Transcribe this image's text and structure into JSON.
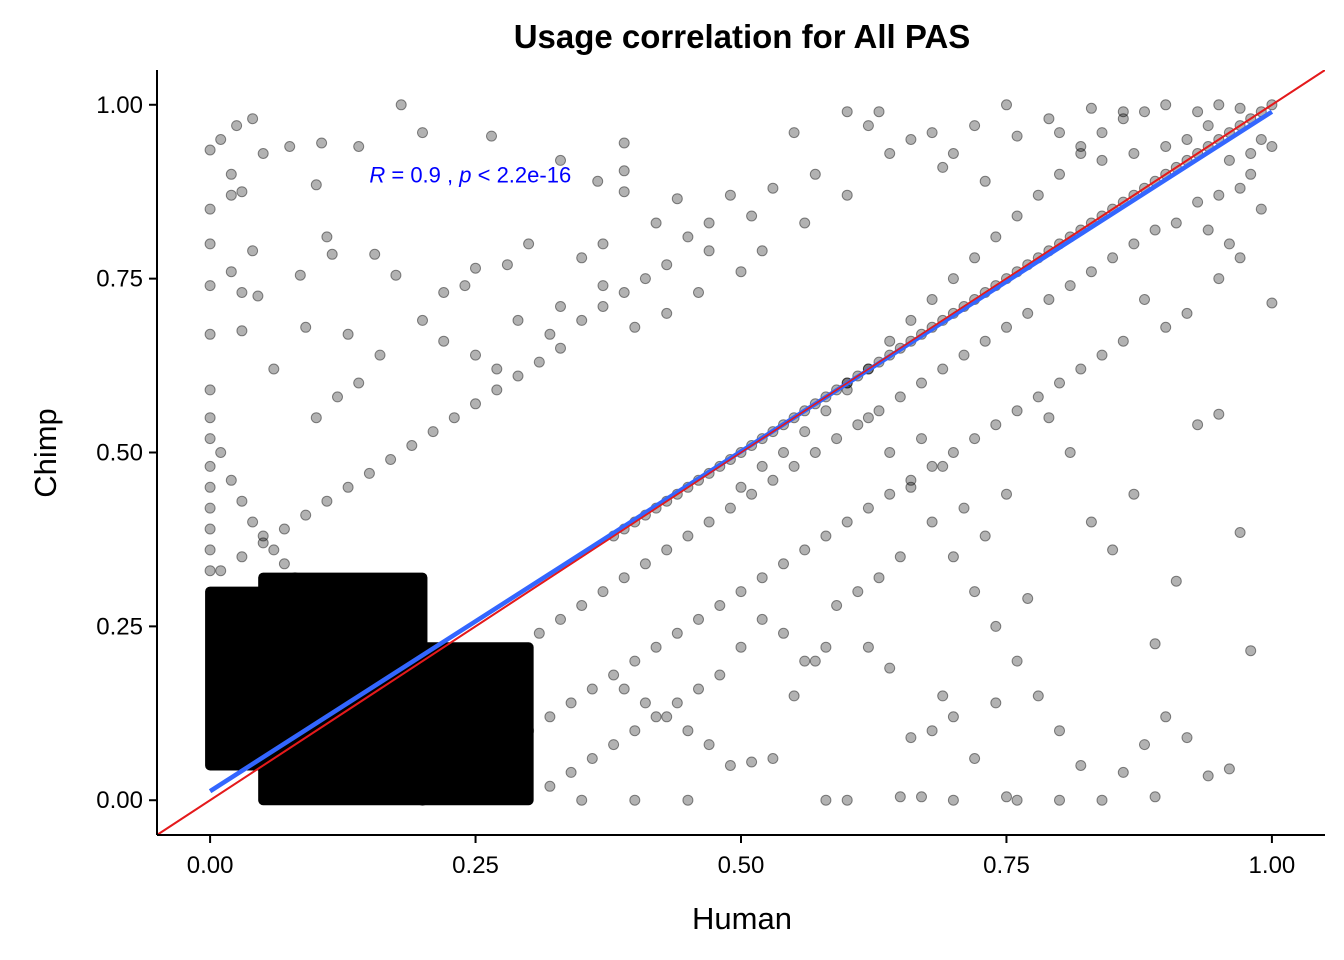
{
  "chart_data": {
    "type": "scatter",
    "title": "Usage correlation for All PAS",
    "xlabel": "Human",
    "ylabel": "Chimp",
    "xlim": [
      -0.05,
      1.05
    ],
    "ylim": [
      -0.05,
      1.05
    ],
    "x_ticks": [
      "0.00",
      "0.25",
      "0.50",
      "0.75",
      "1.00"
    ],
    "y_ticks": [
      "0.00",
      "0.25",
      "0.50",
      "0.75",
      "1.00"
    ],
    "x_tick_values": [
      0,
      0.25,
      0.5,
      0.75,
      1
    ],
    "y_tick_values": [
      0,
      0.25,
      0.5,
      0.75,
      1
    ],
    "grid": false,
    "annotation": {
      "r_symbol": "R",
      "r_text": " = 0.9 , ",
      "p_symbol": "p",
      "p_text": " < 2.2e-16",
      "x": 0.15,
      "y": 0.9,
      "color": "#0000ff"
    },
    "regression_line": {
      "name": "",
      "x": [
        0,
        1
      ],
      "y": [
        0.013,
        0.99
      ],
      "color": "#3366ff"
    },
    "identity_line": {
      "slope": 1,
      "intercept": 0,
      "color": "#e41a1c"
    },
    "point_color": "#000000",
    "point_opacity": 0.3,
    "dense_bands": [
      {
        "x": [
          0,
          0.05
        ],
        "y": [
          0.05,
          0.3
        ]
      },
      {
        "x": [
          0.05,
          0.2
        ],
        "y": [
          0,
          0.32
        ]
      },
      {
        "x": [
          0.2,
          0.3
        ],
        "y": [
          0,
          0.22
        ]
      }
    ],
    "points": [
      [
        0.0,
        0.935
      ],
      [
        0.01,
        0.95
      ],
      [
        0.04,
        0.98
      ],
      [
        0.02,
        0.9
      ],
      [
        0.025,
        0.97
      ],
      [
        0.0,
        0.85
      ],
      [
        0.02,
        0.87
      ],
      [
        0.03,
        0.875
      ],
      [
        0.05,
        0.93
      ],
      [
        0.18,
        1.0
      ],
      [
        0.2,
        0.96
      ],
      [
        0.265,
        0.955
      ],
      [
        0.39,
        0.945
      ],
      [
        0.14,
        0.94
      ],
      [
        0.105,
        0.945
      ],
      [
        0.075,
        0.94
      ],
      [
        0.0,
        0.8
      ],
      [
        0.02,
        0.76
      ],
      [
        0.04,
        0.79
      ],
      [
        0.0,
        0.74
      ],
      [
        0.03,
        0.73
      ],
      [
        0.045,
        0.725
      ],
      [
        0.085,
        0.755
      ],
      [
        0.11,
        0.81
      ],
      [
        0.115,
        0.785
      ],
      [
        0.155,
        0.785
      ],
      [
        0.175,
        0.755
      ],
      [
        0.1,
        0.885
      ],
      [
        0.39,
        0.905
      ],
      [
        0.33,
        0.92
      ],
      [
        0.44,
        0.865
      ],
      [
        0.42,
        0.83
      ],
      [
        0.47,
        0.79
      ],
      [
        0.39,
        0.875
      ],
      [
        0.365,
        0.89
      ],
      [
        0.37,
        0.8
      ],
      [
        0.25,
        0.765
      ],
      [
        0.28,
        0.77
      ],
      [
        0.22,
        0.73
      ],
      [
        0.24,
        0.74
      ],
      [
        0.3,
        0.8
      ],
      [
        0.35,
        0.78
      ],
      [
        0.0,
        0.67
      ],
      [
        0.03,
        0.675
      ],
      [
        0.06,
        0.62
      ],
      [
        0.09,
        0.68
      ],
      [
        0.13,
        0.67
      ],
      [
        0.16,
        0.64
      ],
      [
        0.2,
        0.69
      ],
      [
        0.22,
        0.66
      ],
      [
        0.25,
        0.64
      ],
      [
        0.29,
        0.69
      ],
      [
        0.27,
        0.62
      ],
      [
        0.32,
        0.67
      ],
      [
        0.33,
        0.71
      ],
      [
        0.37,
        0.74
      ],
      [
        0.4,
        0.68
      ],
      [
        0.43,
        0.7
      ],
      [
        0.46,
        0.73
      ],
      [
        0.5,
        0.76
      ],
      [
        0.52,
        0.79
      ],
      [
        0.56,
        0.83
      ],
      [
        0.57,
        0.9
      ],
      [
        0.6,
        0.87
      ],
      [
        0.63,
        0.99
      ],
      [
        0.64,
        0.93
      ],
      [
        0.66,
        0.95
      ],
      [
        0.69,
        0.91
      ],
      [
        0.72,
        0.97
      ],
      [
        0.73,
        0.89
      ],
      [
        0.75,
        1.0
      ],
      [
        0.79,
        0.98
      ],
      [
        0.83,
        0.995
      ],
      [
        0.86,
        0.98
      ],
      [
        0.88,
        0.99
      ],
      [
        0.9,
        1.0
      ],
      [
        0.93,
        0.99
      ],
      [
        0.95,
        1.0
      ],
      [
        0.97,
        0.995
      ],
      [
        1.0,
        1.0
      ],
      [
        0.99,
        0.99
      ],
      [
        0.98,
        0.98
      ],
      [
        0.97,
        0.97
      ],
      [
        0.96,
        0.96
      ],
      [
        0.95,
        0.95
      ],
      [
        0.94,
        0.94
      ],
      [
        0.93,
        0.93
      ],
      [
        0.92,
        0.92
      ],
      [
        0.91,
        0.91
      ],
      [
        0.9,
        0.9
      ],
      [
        0.89,
        0.89
      ],
      [
        0.88,
        0.88
      ],
      [
        0.87,
        0.87
      ],
      [
        0.86,
        0.86
      ],
      [
        0.85,
        0.85
      ],
      [
        0.84,
        0.84
      ],
      [
        0.83,
        0.83
      ],
      [
        0.82,
        0.82
      ],
      [
        0.81,
        0.81
      ],
      [
        0.8,
        0.8
      ],
      [
        0.79,
        0.79
      ],
      [
        0.78,
        0.78
      ],
      [
        0.77,
        0.77
      ],
      [
        0.76,
        0.76
      ],
      [
        0.75,
        0.75
      ],
      [
        0.74,
        0.74
      ],
      [
        0.73,
        0.73
      ],
      [
        0.72,
        0.72
      ],
      [
        0.71,
        0.71
      ],
      [
        0.7,
        0.7
      ],
      [
        0.69,
        0.69
      ],
      [
        0.68,
        0.68
      ],
      [
        0.67,
        0.67
      ],
      [
        0.66,
        0.66
      ],
      [
        0.65,
        0.65
      ],
      [
        0.64,
        0.64
      ],
      [
        0.63,
        0.63
      ],
      [
        0.62,
        0.62
      ],
      [
        0.61,
        0.61
      ],
      [
        0.6,
        0.6
      ],
      [
        0.59,
        0.59
      ],
      [
        0.58,
        0.58
      ],
      [
        0.57,
        0.57
      ],
      [
        0.56,
        0.56
      ],
      [
        0.55,
        0.55
      ],
      [
        0.54,
        0.54
      ],
      [
        0.53,
        0.53
      ],
      [
        0.52,
        0.52
      ],
      [
        0.51,
        0.51
      ],
      [
        0.5,
        0.5
      ],
      [
        0.49,
        0.49
      ],
      [
        0.48,
        0.48
      ],
      [
        0.47,
        0.47
      ],
      [
        0.46,
        0.46
      ],
      [
        0.45,
        0.45
      ],
      [
        0.44,
        0.44
      ],
      [
        0.43,
        0.43
      ],
      [
        0.42,
        0.42
      ],
      [
        0.41,
        0.41
      ],
      [
        0.4,
        0.4
      ],
      [
        0.39,
        0.39
      ],
      [
        0.38,
        0.38
      ],
      [
        0.6,
        0.99
      ],
      [
        0.62,
        0.97
      ],
      [
        0.68,
        0.96
      ],
      [
        0.7,
        0.93
      ],
      [
        0.76,
        0.955
      ],
      [
        0.8,
        0.96
      ],
      [
        0.82,
        0.94
      ],
      [
        0.84,
        0.92
      ],
      [
        0.87,
        0.93
      ],
      [
        0.9,
        0.94
      ],
      [
        0.92,
        0.95
      ],
      [
        0.94,
        0.97
      ],
      [
        0.96,
        0.92
      ],
      [
        0.98,
        0.93
      ],
      [
        1.0,
        0.94
      ],
      [
        0.99,
        0.95
      ],
      [
        0.97,
        0.88
      ],
      [
        0.95,
        0.87
      ],
      [
        0.93,
        0.86
      ],
      [
        0.91,
        0.83
      ],
      [
        0.89,
        0.82
      ],
      [
        0.87,
        0.8
      ],
      [
        0.85,
        0.78
      ],
      [
        0.83,
        0.76
      ],
      [
        0.81,
        0.74
      ],
      [
        0.79,
        0.72
      ],
      [
        0.77,
        0.7
      ],
      [
        0.75,
        0.68
      ],
      [
        0.73,
        0.66
      ],
      [
        0.71,
        0.64
      ],
      [
        0.69,
        0.62
      ],
      [
        0.67,
        0.6
      ],
      [
        0.65,
        0.58
      ],
      [
        0.63,
        0.56
      ],
      [
        0.61,
        0.54
      ],
      [
        0.59,
        0.52
      ],
      [
        0.57,
        0.5
      ],
      [
        0.55,
        0.48
      ],
      [
        0.53,
        0.46
      ],
      [
        0.51,
        0.44
      ],
      [
        0.49,
        0.42
      ],
      [
        0.47,
        0.4
      ],
      [
        0.45,
        0.38
      ],
      [
        0.43,
        0.36
      ],
      [
        0.41,
        0.34
      ],
      [
        0.39,
        0.32
      ],
      [
        0.37,
        0.3
      ],
      [
        0.35,
        0.28
      ],
      [
        0.33,
        0.26
      ],
      [
        0.31,
        0.24
      ],
      [
        0.55,
        0.96
      ],
      [
        0.53,
        0.88
      ],
      [
        0.51,
        0.84
      ],
      [
        0.49,
        0.87
      ],
      [
        0.47,
        0.83
      ],
      [
        0.45,
        0.81
      ],
      [
        0.43,
        0.77
      ],
      [
        0.41,
        0.75
      ],
      [
        0.39,
        0.73
      ],
      [
        0.37,
        0.71
      ],
      [
        0.35,
        0.69
      ],
      [
        0.33,
        0.65
      ],
      [
        0.31,
        0.63
      ],
      [
        0.29,
        0.61
      ],
      [
        0.27,
        0.59
      ],
      [
        0.25,
        0.57
      ],
      [
        0.23,
        0.55
      ],
      [
        0.21,
        0.53
      ],
      [
        0.19,
        0.51
      ],
      [
        0.17,
        0.49
      ],
      [
        0.15,
        0.47
      ],
      [
        0.13,
        0.45
      ],
      [
        0.11,
        0.43
      ],
      [
        0.09,
        0.41
      ],
      [
        0.07,
        0.39
      ],
      [
        0.05,
        0.37
      ],
      [
        0.03,
        0.35
      ],
      [
        0.01,
        0.33
      ],
      [
        0.0,
        0.55
      ],
      [
        0.0,
        0.59
      ],
      [
        0.0,
        0.52
      ],
      [
        0.0,
        0.48
      ],
      [
        0.0,
        0.45
      ],
      [
        0.0,
        0.42
      ],
      [
        0.0,
        0.39
      ],
      [
        0.0,
        0.36
      ],
      [
        0.0,
        0.33
      ],
      [
        0.01,
        0.5
      ],
      [
        0.02,
        0.46
      ],
      [
        0.03,
        0.43
      ],
      [
        0.04,
        0.4
      ],
      [
        0.05,
        0.38
      ],
      [
        0.06,
        0.36
      ],
      [
        0.07,
        0.34
      ],
      [
        0.08,
        0.32
      ],
      [
        0.09,
        0.3
      ],
      [
        0.1,
        0.28
      ],
      [
        0.11,
        0.27
      ],
      [
        0.12,
        0.26
      ],
      [
        0.13,
        0.25
      ],
      [
        0.6,
        0.6
      ],
      [
        0.62,
        0.55
      ],
      [
        0.64,
        0.5
      ],
      [
        0.66,
        0.45
      ],
      [
        0.68,
        0.4
      ],
      [
        0.7,
        0.35
      ],
      [
        0.72,
        0.3
      ],
      [
        0.74,
        0.25
      ],
      [
        0.76,
        0.2
      ],
      [
        0.78,
        0.15
      ],
      [
        0.8,
        0.1
      ],
      [
        0.82,
        0.05
      ],
      [
        0.84,
        0.0
      ],
      [
        0.86,
        0.04
      ],
      [
        0.88,
        0.08
      ],
      [
        0.9,
        0.12
      ],
      [
        0.92,
        0.09
      ],
      [
        0.94,
        0.035
      ],
      [
        0.96,
        0.045
      ],
      [
        0.98,
        0.215
      ],
      [
        0.97,
        0.385
      ],
      [
        0.95,
        0.555
      ],
      [
        0.93,
        0.54
      ],
      [
        0.91,
        0.315
      ],
      [
        0.89,
        0.225
      ],
      [
        0.87,
        0.44
      ],
      [
        0.85,
        0.36
      ],
      [
        0.83,
        0.4
      ],
      [
        0.81,
        0.5
      ],
      [
        0.79,
        0.55
      ],
      [
        0.77,
        0.29
      ],
      [
        0.75,
        0.44
      ],
      [
        0.73,
        0.38
      ],
      [
        0.71,
        0.42
      ],
      [
        0.69,
        0.48
      ],
      [
        0.67,
        0.52
      ],
      [
        0.65,
        0.35
      ],
      [
        0.63,
        0.32
      ],
      [
        0.61,
        0.3
      ],
      [
        0.59,
        0.28
      ],
      [
        0.57,
        0.2
      ],
      [
        0.55,
        0.15
      ],
      [
        0.53,
        0.06
      ],
      [
        0.51,
        0.055
      ],
      [
        0.49,
        0.05
      ],
      [
        0.47,
        0.08
      ],
      [
        0.45,
        0.1
      ],
      [
        0.43,
        0.12
      ],
      [
        0.41,
        0.14
      ],
      [
        0.39,
        0.16
      ],
      [
        1.0,
        0.715
      ],
      [
        0.99,
        0.85
      ],
      [
        0.98,
        0.9
      ],
      [
        0.97,
        0.78
      ],
      [
        0.96,
        0.8
      ],
      [
        0.95,
        0.75
      ],
      [
        0.94,
        0.82
      ],
      [
        0.92,
        0.7
      ],
      [
        0.9,
        0.68
      ],
      [
        0.88,
        0.72
      ],
      [
        0.86,
        0.66
      ],
      [
        0.84,
        0.64
      ],
      [
        0.82,
        0.62
      ],
      [
        0.8,
        0.6
      ],
      [
        0.78,
        0.58
      ],
      [
        0.76,
        0.56
      ],
      [
        0.74,
        0.54
      ],
      [
        0.72,
        0.52
      ],
      [
        0.7,
        0.5
      ],
      [
        0.68,
        0.48
      ],
      [
        0.66,
        0.46
      ],
      [
        0.64,
        0.44
      ],
      [
        0.62,
        0.42
      ],
      [
        0.6,
        0.4
      ],
      [
        0.58,
        0.38
      ],
      [
        0.56,
        0.36
      ],
      [
        0.54,
        0.34
      ],
      [
        0.52,
        0.32
      ],
      [
        0.5,
        0.3
      ],
      [
        0.48,
        0.28
      ],
      [
        0.46,
        0.26
      ],
      [
        0.44,
        0.24
      ],
      [
        0.42,
        0.22
      ],
      [
        0.4,
        0.2
      ],
      [
        0.38,
        0.18
      ],
      [
        0.36,
        0.16
      ],
      [
        0.34,
        0.14
      ],
      [
        0.32,
        0.12
      ],
      [
        0.3,
        0.1
      ],
      [
        0.28,
        0.08
      ],
      [
        0.26,
        0.06
      ],
      [
        0.24,
        0.04
      ],
      [
        0.22,
        0.02
      ],
      [
        0.2,
        0.0
      ],
      [
        0.35,
        0.0
      ],
      [
        0.4,
        0.0
      ],
      [
        0.45,
        0.0
      ],
      [
        0.58,
        0.0
      ],
      [
        0.6,
        0.0
      ],
      [
        0.65,
        0.005
      ],
      [
        0.67,
        0.005
      ],
      [
        0.7,
        0.0
      ],
      [
        0.75,
        0.005
      ],
      [
        0.76,
        0.0
      ],
      [
        0.89,
        0.005
      ],
      [
        0.8,
        0.0
      ],
      [
        0.74,
        0.14
      ],
      [
        0.69,
        0.15
      ],
      [
        0.66,
        0.09
      ],
      [
        0.68,
        0.1
      ],
      [
        0.7,
        0.12
      ],
      [
        0.72,
        0.06
      ],
      [
        0.62,
        0.22
      ],
      [
        0.64,
        0.19
      ],
      [
        0.58,
        0.22
      ],
      [
        0.56,
        0.2
      ],
      [
        0.54,
        0.24
      ],
      [
        0.52,
        0.26
      ],
      [
        0.5,
        0.22
      ],
      [
        0.48,
        0.18
      ],
      [
        0.46,
        0.16
      ],
      [
        0.44,
        0.14
      ],
      [
        0.42,
        0.12
      ],
      [
        0.4,
        0.1
      ],
      [
        0.38,
        0.08
      ],
      [
        0.36,
        0.06
      ],
      [
        0.34,
        0.04
      ],
      [
        0.32,
        0.02
      ],
      [
        0.5,
        0.45
      ],
      [
        0.52,
        0.48
      ],
      [
        0.54,
        0.5
      ],
      [
        0.56,
        0.53
      ],
      [
        0.58,
        0.56
      ],
      [
        0.6,
        0.59
      ],
      [
        0.62,
        0.62
      ],
      [
        0.64,
        0.66
      ],
      [
        0.66,
        0.69
      ],
      [
        0.68,
        0.72
      ],
      [
        0.7,
        0.75
      ],
      [
        0.72,
        0.78
      ],
      [
        0.74,
        0.81
      ],
      [
        0.76,
        0.84
      ],
      [
        0.78,
        0.87
      ],
      [
        0.8,
        0.9
      ],
      [
        0.82,
        0.93
      ],
      [
        0.84,
        0.96
      ],
      [
        0.86,
        0.99
      ],
      [
        0.1,
        0.55
      ],
      [
        0.12,
        0.58
      ],
      [
        0.14,
        0.6
      ]
    ]
  }
}
